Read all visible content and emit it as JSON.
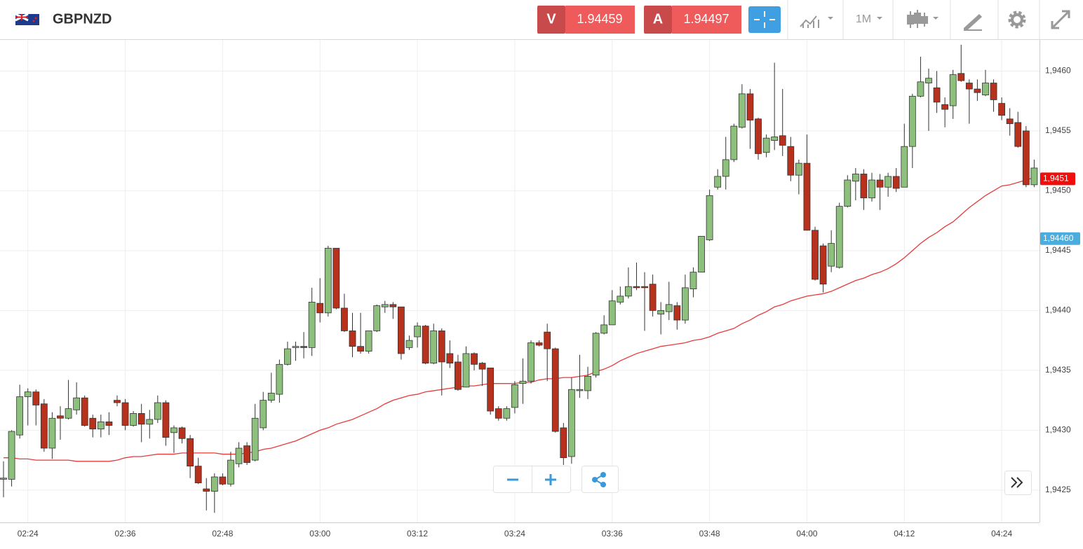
{
  "header": {
    "symbol": "GBPNZD",
    "bid_label": "V",
    "bid": 1.94459,
    "ask_label": "A",
    "ask": 1.94497,
    "timeframe": "1M"
  },
  "chart_data": {
    "type": "candlestick",
    "categories": [
      null,
      null,
      null,
      "02:24",
      null,
      null,
      null,
      null,
      null,
      null,
      null,
      null,
      null,
      null,
      null,
      "02:36",
      null,
      null,
      null,
      null,
      null,
      null,
      null,
      null,
      null,
      null,
      null,
      "02:48",
      null,
      null,
      null,
      null,
      null,
      null,
      null,
      null,
      null,
      null,
      null,
      "03:00",
      null,
      null,
      null,
      null,
      null,
      null,
      null,
      null,
      null,
      null,
      null,
      "03:12",
      null,
      null,
      null,
      null,
      null,
      null,
      null,
      null,
      null,
      null,
      null,
      "03:24",
      null,
      null,
      null,
      null,
      null,
      null,
      null,
      null,
      null,
      null,
      null,
      "03:36",
      null,
      null,
      null,
      null,
      null,
      null,
      null,
      null,
      null,
      null,
      null,
      "03:48",
      null,
      null,
      null,
      null,
      null,
      null,
      null,
      null,
      null,
      null,
      null,
      "04:00",
      null,
      null,
      null,
      null,
      null,
      null,
      null,
      null,
      null,
      null,
      null,
      "04:12",
      null,
      null,
      null,
      null,
      null,
      null,
      null,
      null,
      null,
      null,
      null,
      "04:24",
      null,
      null,
      null,
      null
    ],
    "open": [
      1.94259,
      1.94259,
      1.94296,
      1.94328,
      1.94332,
      1.94322,
      1.94285,
      1.94312,
      1.9431,
      1.94317,
      1.94327,
      1.9431,
      1.94301,
      1.94307,
      1.94325,
      1.94323,
      1.94304,
      1.94314,
      1.94305,
      1.94309,
      1.94323,
      1.94298,
      1.94302,
      1.94293,
      1.9427,
      1.94251,
      1.94249,
      1.94261,
      1.94255,
      1.94272,
      1.94287,
      1.94275,
      1.94302,
      1.94325,
      1.9433,
      1.94355,
      1.94369,
      1.9437,
      1.94369,
      1.94406,
      1.94398,
      1.94452,
      1.94402,
      1.94383,
      1.9437,
      1.94366,
      1.94383,
      1.94403,
      1.94405,
      1.94403,
      1.94369,
      1.94378,
      1.94387,
      1.94356,
      1.94383,
      1.94364,
      1.94357,
      1.94336,
      1.94364,
      1.94356,
      1.94352,
      1.94318,
      1.9431,
      1.94319,
      1.94339,
      1.94341,
      1.94373,
      1.94382,
      1.94368,
      1.94302,
      1.94278,
      1.94333,
      1.94333,
      1.94346,
      1.94381,
      1.94388,
      1.94407,
      1.94412,
      1.9442,
      1.9442,
      1.94422,
      1.94397,
      1.94399,
      1.94404,
      1.94392,
      1.94418,
      1.94432,
      1.94459,
      1.94503,
      1.94512,
      1.94526,
      1.94553,
      1.94581,
      1.9456,
      1.94532,
      1.94542,
      1.94546,
      1.94537,
      1.94513,
      1.94523,
      1.94467,
      1.94454,
      1.94437,
      1.94436,
      1.94487,
      1.94508,
      1.94514,
      1.94494,
      1.94509,
      1.94503,
      1.94512,
      1.94503,
      1.94537,
      1.94579,
      1.9459,
      1.94586,
      1.94572,
      1.94571,
      1.94598,
      1.9459,
      1.94585,
      1.9458,
      1.9459,
      1.94573,
      1.9456,
      1.94557,
      1.9455,
      1.94505
    ],
    "high": [
      1.94274,
      1.943,
      1.94338,
      1.94335,
      1.94334,
      1.94326,
      1.94315,
      1.9432,
      1.94342,
      1.9434,
      1.94329,
      1.94313,
      1.94313,
      1.94315,
      1.94329,
      1.94326,
      1.94316,
      1.94322,
      1.94317,
      1.94329,
      1.94325,
      1.94304,
      1.94303,
      1.94296,
      1.94277,
      1.9426,
      1.94264,
      1.94264,
      1.94282,
      1.9429,
      1.9429,
      1.94322,
      1.94332,
      1.94348,
      1.94359,
      1.94374,
      1.94374,
      1.94382,
      1.94419,
      1.94427,
      1.94454,
      1.94452,
      1.94414,
      1.94398,
      1.94398,
      1.94383,
      1.94405,
      1.94408,
      1.94407,
      1.94403,
      1.94379,
      1.9439,
      1.94388,
      1.94389,
      1.94385,
      1.94375,
      1.94363,
      1.9437,
      1.94365,
      1.94357,
      1.94352,
      1.9432,
      1.9432,
      1.94341,
      1.9436,
      1.94375,
      1.94375,
      1.94389,
      1.94369,
      1.94306,
      1.94344,
      1.94363,
      1.94353,
      1.94382,
      1.94396,
      1.94417,
      1.9442,
      1.94436,
      1.9444,
      1.94432,
      1.9443,
      1.94407,
      1.94424,
      1.94407,
      1.9443,
      1.94436,
      1.94462,
      1.94501,
      1.94518,
      1.94545,
      1.94556,
      1.94589,
      1.94585,
      1.94561,
      1.94547,
      1.94607,
      1.94585,
      1.94545,
      1.94526,
      1.94547,
      1.9447,
      1.94456,
      1.94467,
      1.9449,
      1.94513,
      1.94519,
      1.94518,
      1.94515,
      1.94514,
      1.94515,
      1.94519,
      1.94556,
      1.94581,
      1.94612,
      1.94602,
      1.946,
      1.94578,
      1.94601,
      1.94622,
      1.94593,
      1.94593,
      1.94601,
      1.94593,
      1.94578,
      1.94569,
      1.94566,
      1.94554,
      1.94526
    ],
    "low": [
      1.94244,
      1.94253,
      1.94293,
      1.94304,
      1.94304,
      1.94282,
      1.94276,
      1.94292,
      1.94309,
      1.94313,
      1.94303,
      1.94294,
      1.94294,
      1.94296,
      1.9432,
      1.943,
      1.94303,
      1.9429,
      1.94293,
      1.94306,
      1.94287,
      1.94281,
      1.94289,
      1.9426,
      1.94255,
      1.94233,
      1.94231,
      1.94254,
      1.94253,
      1.94269,
      1.94271,
      1.94274,
      1.943,
      1.94323,
      1.94323,
      1.94354,
      1.94358,
      1.9436,
      1.94362,
      1.9439,
      1.94395,
      1.94401,
      1.94382,
      1.94361,
      1.94364,
      1.94364,
      1.94382,
      1.94398,
      1.94393,
      1.94359,
      1.94367,
      1.94369,
      1.94355,
      1.94355,
      1.94329,
      1.94352,
      1.94333,
      1.94336,
      1.9435,
      1.94337,
      1.94313,
      1.94308,
      1.94308,
      1.94314,
      1.94322,
      1.94339,
      1.9437,
      1.94341,
      1.94298,
      1.94271,
      1.94272,
      1.94327,
      1.94326,
      1.94344,
      1.9438,
      1.94388,
      1.94405,
      1.9441,
      1.94417,
      1.94383,
      1.94395,
      1.9438,
      1.94392,
      1.94384,
      1.94389,
      1.94411,
      1.94432,
      1.94458,
      1.94501,
      1.94501,
      1.94524,
      1.94552,
      1.94535,
      1.94526,
      1.94528,
      1.94534,
      1.94529,
      1.94508,
      1.94497,
      1.94467,
      1.94425,
      1.94415,
      1.94432,
      1.94435,
      1.94486,
      1.94492,
      1.94484,
      1.94491,
      1.94484,
      1.94495,
      1.94499,
      1.94503,
      1.94519,
      1.94578,
      1.9455,
      1.94565,
      1.94553,
      1.9456,
      1.94591,
      1.94556,
      1.94575,
      1.94579,
      1.94566,
      1.94559,
      1.94546,
      1.94536,
      1.94503,
      1.94503
    ],
    "close": [
      1.9426,
      1.94299,
      1.94328,
      1.94332,
      1.94321,
      1.94285,
      1.9431,
      1.9431,
      1.94318,
      1.94327,
      1.94304,
      1.94301,
      1.94307,
      1.94304,
      1.94323,
      1.94304,
      1.94314,
      1.94305,
      1.94309,
      1.94323,
      1.94294,
      1.94302,
      1.94293,
      1.9427,
      1.94256,
      1.94249,
      1.94261,
      1.94255,
      1.94275,
      1.94285,
      1.94273,
      1.9431,
      1.94325,
      1.94331,
      1.94355,
      1.94368,
      1.9437,
      1.94369,
      1.94407,
      1.94398,
      1.94452,
      1.94402,
      1.94383,
      1.9437,
      1.94366,
      1.94383,
      1.94404,
      1.94405,
      1.94403,
      1.94364,
      1.94375,
      1.94387,
      1.94356,
      1.94383,
      1.94357,
      1.94356,
      1.94334,
      1.94364,
      1.94355,
      1.94351,
      1.94316,
      1.9431,
      1.94318,
      1.94338,
      1.94341,
      1.94373,
      1.94371,
      1.94368,
      1.94299,
      1.94277,
      1.94334,
      1.94334,
      1.94345,
      1.94381,
      1.94388,
      1.94408,
      1.94412,
      1.9442,
      1.94419,
      1.94419,
      1.944,
      1.944,
      1.94405,
      1.94392,
      1.94419,
      1.94432,
      1.94462,
      1.94496,
      1.94512,
      1.94526,
      1.94554,
      1.94581,
      1.94559,
      1.94531,
      1.94544,
      1.94545,
      1.94538,
      1.94513,
      1.94523,
      1.94467,
      1.94426,
      1.94422,
      1.94456,
      1.94487,
      1.94509,
      1.94514,
      1.94494,
      1.94509,
      1.94503,
      1.94512,
      1.94502,
      1.94537,
      1.94579,
      1.94591,
      1.94594,
      1.94574,
      1.94568,
      1.94597,
      1.94592,
      1.94585,
      1.94582,
      1.9459,
      1.94576,
      1.94563,
      1.94556,
      1.94537,
      1.94505,
      1.94519
    ],
    "up_color": "#8dc07c",
    "down_color": "#b8311c",
    "moving_average": {
      "color": "#e83a3a",
      "values": [
        1.94277,
        1.94277,
        1.94276,
        1.94276,
        1.94275,
        1.94275,
        1.94275,
        1.94275,
        1.94275,
        1.94274,
        1.94274,
        1.94274,
        1.94274,
        1.94274,
        1.94275,
        1.94277,
        1.94278,
        1.94278,
        1.94279,
        1.9428,
        1.9428,
        1.9428,
        1.94281,
        1.94281,
        1.94281,
        1.94281,
        1.94281,
        1.9428,
        1.9428,
        1.9428,
        1.94281,
        1.94282,
        1.94284,
        1.94285,
        1.94287,
        1.94289,
        1.94291,
        1.94294,
        1.94297,
        1.943,
        1.94302,
        1.94305,
        1.94307,
        1.94309,
        1.94312,
        1.94315,
        1.94318,
        1.94322,
        1.94325,
        1.94327,
        1.94329,
        1.9433,
        1.94332,
        1.94333,
        1.94334,
        1.94335,
        1.94336,
        1.94337,
        1.94337,
        1.94338,
        1.94339,
        1.94339,
        1.94339,
        1.94339,
        1.9434,
        1.9434,
        1.94342,
        1.94343,
        1.94343,
        1.94344,
        1.94344,
        1.94345,
        1.94346,
        1.94349,
        1.94351,
        1.94354,
        1.94358,
        1.94361,
        1.94364,
        1.94366,
        1.94368,
        1.9437,
        1.94371,
        1.94372,
        1.94373,
        1.94375,
        1.94376,
        1.94378,
        1.94381,
        1.94383,
        1.94385,
        1.94389,
        1.94392,
        1.94396,
        1.94399,
        1.94403,
        1.94405,
        1.94408,
        1.9441,
        1.94412,
        1.94413,
        1.94414,
        1.94416,
        1.94419,
        1.94422,
        1.94425,
        1.94427,
        1.9443,
        1.94432,
        1.94435,
        1.94439,
        1.94444,
        1.9445,
        1.94456,
        1.94461,
        1.94465,
        1.9447,
        1.94474,
        1.9448,
        1.94486,
        1.94491,
        1.94496,
        1.945,
        1.94504,
        1.94505,
        1.94507,
        1.94509,
        1.94511
      ]
    },
    "ylim": [
      1.94223,
      1.94626
    ],
    "yticks": [
      {
        "value": 1.9425,
        "label": "1,9425"
      },
      {
        "value": 1.943,
        "label": "1,9430"
      },
      {
        "value": 1.9435,
        "label": "1,9435"
      },
      {
        "value": 1.944,
        "label": "1,9440"
      },
      {
        "value": 1.9445,
        "label": "1,9445"
      },
      {
        "value": 1.945,
        "label": "1,9450"
      },
      {
        "value": 1.9455,
        "label": "1,9455"
      },
      {
        "value": 1.946,
        "label": "1,9460"
      }
    ],
    "grid": true,
    "price_tags": [
      {
        "value": 1.9451,
        "label": "1,9451",
        "color": "#f20d0d"
      },
      {
        "value": 1.9446,
        "label": "1,94460",
        "color": "#4badde"
      }
    ]
  }
}
